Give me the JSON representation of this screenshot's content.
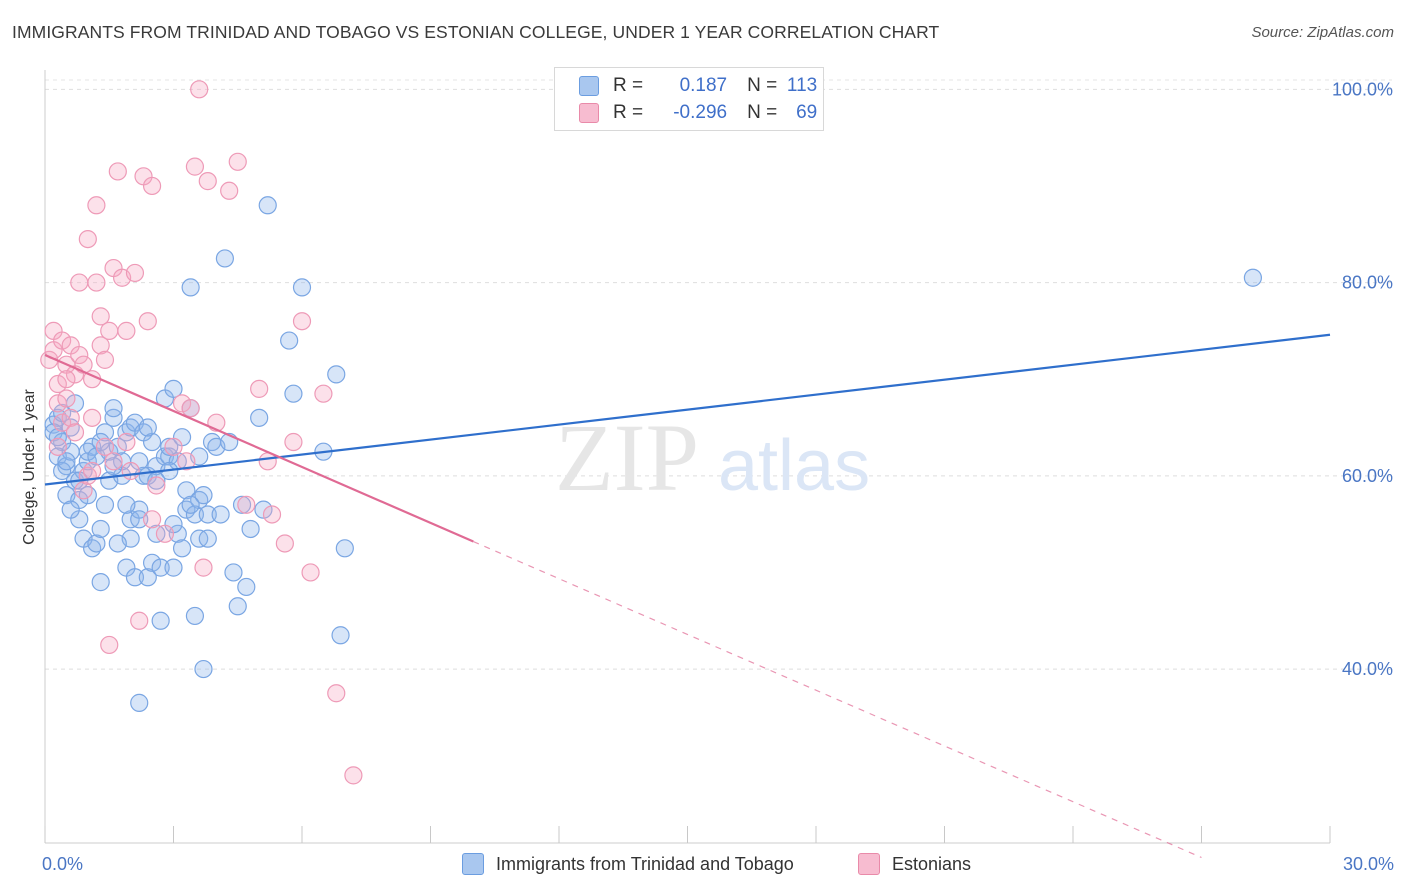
{
  "title": "IMMIGRANTS FROM TRINIDAD AND TOBAGO VS ESTONIAN COLLEGE, UNDER 1 YEAR CORRELATION CHART",
  "source": "Source: ZipAtlas.com",
  "watermark": {
    "zip": "ZIP",
    "atlas": "atlas"
  },
  "legend": {
    "rows": [
      {
        "r_label": "R =",
        "r_value": "0.187",
        "n_label": "N =",
        "n_value": "113",
        "color": "#a9c7ef",
        "border": "#6b9de0"
      },
      {
        "r_label": "R =",
        "r_value": "-0.296",
        "n_label": "N =",
        "n_value": "69",
        "color": "#f7bcd0",
        "border": "#e98aa9"
      }
    ]
  },
  "chart_data": {
    "type": "scatter",
    "xlabel": "",
    "ylabel": "College, Under 1 year",
    "xlim": [
      0,
      30
    ],
    "ylim": [
      22,
      102
    ],
    "x_tick_labels": [
      {
        "value": 0,
        "label": "0.0%"
      },
      {
        "value": 30,
        "label": "30.0%"
      }
    ],
    "y_tick_labels": [
      {
        "value": 40,
        "label": "40.0%"
      },
      {
        "value": 60,
        "label": "60.0%"
      },
      {
        "value": 80,
        "label": "80.0%"
      },
      {
        "value": 100,
        "label": "100.0%"
      }
    ],
    "grid": true,
    "series": [
      {
        "name": "Immigrants from Trinidad and Tobago",
        "color": "#7aa6e3",
        "fill": "rgba(140,180,235,0.35)",
        "trend": {
          "x0": 0,
          "y0": 59.1,
          "x1": 30,
          "y1": 74.6,
          "dashed_to": null,
          "color": "#2f6fcc"
        },
        "points": [
          [
            0.2,
            65.3
          ],
          [
            0.3,
            66.0
          ],
          [
            0.2,
            64.5
          ],
          [
            0.4,
            63.5
          ],
          [
            0.3,
            62.0
          ],
          [
            0.5,
            61.0
          ],
          [
            0.6,
            62.5
          ],
          [
            0.4,
            60.5
          ],
          [
            0.7,
            59.5
          ],
          [
            0.5,
            58.0
          ],
          [
            0.8,
            57.5
          ],
          [
            0.3,
            64.0
          ],
          [
            0.6,
            65.0
          ],
          [
            0.9,
            60.5
          ],
          [
            1.0,
            61.5
          ],
          [
            1.1,
            63.0
          ],
          [
            0.8,
            55.5
          ],
          [
            0.9,
            53.5
          ],
          [
            1.0,
            62.5
          ],
          [
            1.2,
            62.0
          ],
          [
            1.1,
            52.5
          ],
          [
            1.2,
            53.0
          ],
          [
            1.3,
            49.0
          ],
          [
            1.3,
            54.5
          ],
          [
            1.4,
            64.5
          ],
          [
            1.5,
            62.5
          ],
          [
            1.5,
            59.5
          ],
          [
            1.6,
            66.0
          ],
          [
            1.6,
            67.0
          ],
          [
            1.7,
            63.0
          ],
          [
            1.8,
            60.0
          ],
          [
            1.8,
            61.5
          ],
          [
            1.9,
            64.5
          ],
          [
            1.9,
            50.5
          ],
          [
            2.0,
            65.0
          ],
          [
            2.0,
            53.5
          ],
          [
            2.0,
            55.5
          ],
          [
            2.1,
            65.5
          ],
          [
            2.2,
            61.5
          ],
          [
            2.1,
            49.5
          ],
          [
            2.2,
            56.5
          ],
          [
            2.2,
            55.5
          ],
          [
            2.3,
            64.5
          ],
          [
            2.4,
            49.5
          ],
          [
            2.4,
            60.0
          ],
          [
            2.5,
            63.5
          ],
          [
            2.5,
            51.0
          ],
          [
            2.6,
            54.0
          ],
          [
            2.7,
            50.5
          ],
          [
            2.7,
            45.0
          ],
          [
            2.6,
            61.0
          ],
          [
            2.8,
            62.0
          ],
          [
            2.8,
            68.0
          ],
          [
            2.9,
            62.0
          ],
          [
            2.9,
            63.0
          ],
          [
            3.0,
            69.0
          ],
          [
            3.0,
            50.5
          ],
          [
            3.1,
            54.0
          ],
          [
            3.2,
            64.0
          ],
          [
            3.2,
            52.5
          ],
          [
            3.3,
            58.5
          ],
          [
            3.3,
            56.5
          ],
          [
            3.4,
            67.0
          ],
          [
            3.4,
            79.5
          ],
          [
            3.5,
            56.0
          ],
          [
            3.5,
            45.5
          ],
          [
            3.6,
            57.5
          ],
          [
            3.6,
            53.5
          ],
          [
            3.7,
            40.0
          ],
          [
            3.7,
            58.0
          ],
          [
            3.8,
            53.5
          ],
          [
            3.8,
            56.0
          ],
          [
            3.9,
            63.5
          ],
          [
            4.0,
            63.0
          ],
          [
            4.1,
            56.0
          ],
          [
            4.2,
            82.5
          ],
          [
            4.3,
            63.5
          ],
          [
            4.4,
            50.0
          ],
          [
            4.5,
            46.5
          ],
          [
            4.6,
            57.0
          ],
          [
            4.7,
            48.5
          ],
          [
            4.8,
            54.5
          ],
          [
            5.0,
            66.0
          ],
          [
            5.1,
            56.5
          ],
          [
            5.2,
            88.0
          ],
          [
            5.7,
            74.0
          ],
          [
            5.8,
            68.5
          ],
          [
            6.0,
            79.5
          ],
          [
            6.5,
            62.5
          ],
          [
            6.8,
            70.5
          ],
          [
            6.9,
            43.5
          ],
          [
            7.0,
            52.5
          ],
          [
            2.2,
            36.5
          ],
          [
            0.5,
            61.5
          ],
          [
            0.8,
            59.5
          ],
          [
            1.0,
            58.0
          ],
          [
            1.3,
            63.5
          ],
          [
            1.6,
            61.0
          ],
          [
            1.9,
            57.0
          ],
          [
            2.3,
            60.0
          ],
          [
            2.6,
            59.5
          ],
          [
            3.0,
            55.0
          ],
          [
            3.4,
            57.0
          ],
          [
            0.4,
            66.5
          ],
          [
            0.7,
            67.5
          ],
          [
            1.4,
            57.0
          ],
          [
            2.4,
            65.0
          ],
          [
            3.1,
            61.5
          ],
          [
            0.6,
            56.5
          ],
          [
            1.7,
            53.0
          ],
          [
            2.9,
            60.5
          ],
          [
            3.6,
            62.0
          ],
          [
            28.2,
            80.5
          ]
        ]
      },
      {
        "name": "Estonians",
        "color": "#ee9ab7",
        "fill": "rgba(245,170,196,0.35)",
        "trend": {
          "x0": 0,
          "y0": 72.5,
          "x1": 10,
          "y1": 53.2,
          "dashed_to": {
            "x": 27.0,
            "y": 20.5
          },
          "color": "#e06a94"
        },
        "points": [
          [
            0.1,
            72.0
          ],
          [
            0.2,
            75.0
          ],
          [
            0.2,
            73.0
          ],
          [
            0.3,
            69.5
          ],
          [
            0.3,
            67.5
          ],
          [
            0.4,
            74.0
          ],
          [
            0.4,
            65.5
          ],
          [
            0.5,
            71.5
          ],
          [
            0.5,
            68.0
          ],
          [
            0.6,
            73.5
          ],
          [
            0.6,
            66.0
          ],
          [
            0.7,
            64.5
          ],
          [
            0.7,
            70.5
          ],
          [
            0.8,
            72.5
          ],
          [
            0.8,
            80.0
          ],
          [
            0.9,
            71.5
          ],
          [
            0.9,
            58.5
          ],
          [
            1.0,
            84.5
          ],
          [
            1.0,
            60.0
          ],
          [
            1.1,
            70.0
          ],
          [
            1.1,
            66.0
          ],
          [
            1.2,
            80.0
          ],
          [
            1.2,
            88.0
          ],
          [
            1.3,
            76.5
          ],
          [
            1.3,
            73.5
          ],
          [
            1.4,
            72.0
          ],
          [
            1.4,
            63.0
          ],
          [
            1.5,
            75.0
          ],
          [
            1.5,
            42.5
          ],
          [
            1.6,
            81.5
          ],
          [
            1.6,
            61.5
          ],
          [
            1.7,
            91.5
          ],
          [
            1.8,
            80.5
          ],
          [
            1.9,
            63.5
          ],
          [
            2.0,
            60.5
          ],
          [
            2.1,
            81.0
          ],
          [
            2.2,
            45.0
          ],
          [
            2.3,
            91.0
          ],
          [
            2.4,
            76.0
          ],
          [
            2.5,
            90.0
          ],
          [
            2.5,
            55.5
          ],
          [
            2.6,
            59.0
          ],
          [
            2.8,
            54.0
          ],
          [
            3.0,
            63.0
          ],
          [
            3.2,
            67.5
          ],
          [
            3.3,
            61.5
          ],
          [
            3.4,
            67.0
          ],
          [
            3.5,
            92.0
          ],
          [
            3.6,
            100.0
          ],
          [
            3.7,
            50.5
          ],
          [
            3.8,
            90.5
          ],
          [
            4.0,
            65.5
          ],
          [
            4.3,
            89.5
          ],
          [
            4.5,
            92.5
          ],
          [
            4.7,
            57.0
          ],
          [
            5.0,
            69.0
          ],
          [
            5.2,
            61.5
          ],
          [
            5.3,
            56.0
          ],
          [
            5.6,
            53.0
          ],
          [
            5.8,
            63.5
          ],
          [
            6.0,
            76.0
          ],
          [
            6.2,
            50.0
          ],
          [
            6.5,
            68.5
          ],
          [
            6.8,
            37.5
          ],
          [
            7.2,
            29.0
          ],
          [
            0.3,
            63.0
          ],
          [
            0.5,
            70.0
          ],
          [
            1.1,
            60.5
          ],
          [
            1.9,
            75.0
          ]
        ]
      }
    ]
  },
  "bottom_legend": [
    {
      "label": "Immigrants from Trinidad and Tobago",
      "color": "#a9c7ef",
      "border": "#6b9de0"
    },
    {
      "label": "Estonians",
      "color": "#f7bcd0",
      "border": "#e98aa9"
    }
  ]
}
